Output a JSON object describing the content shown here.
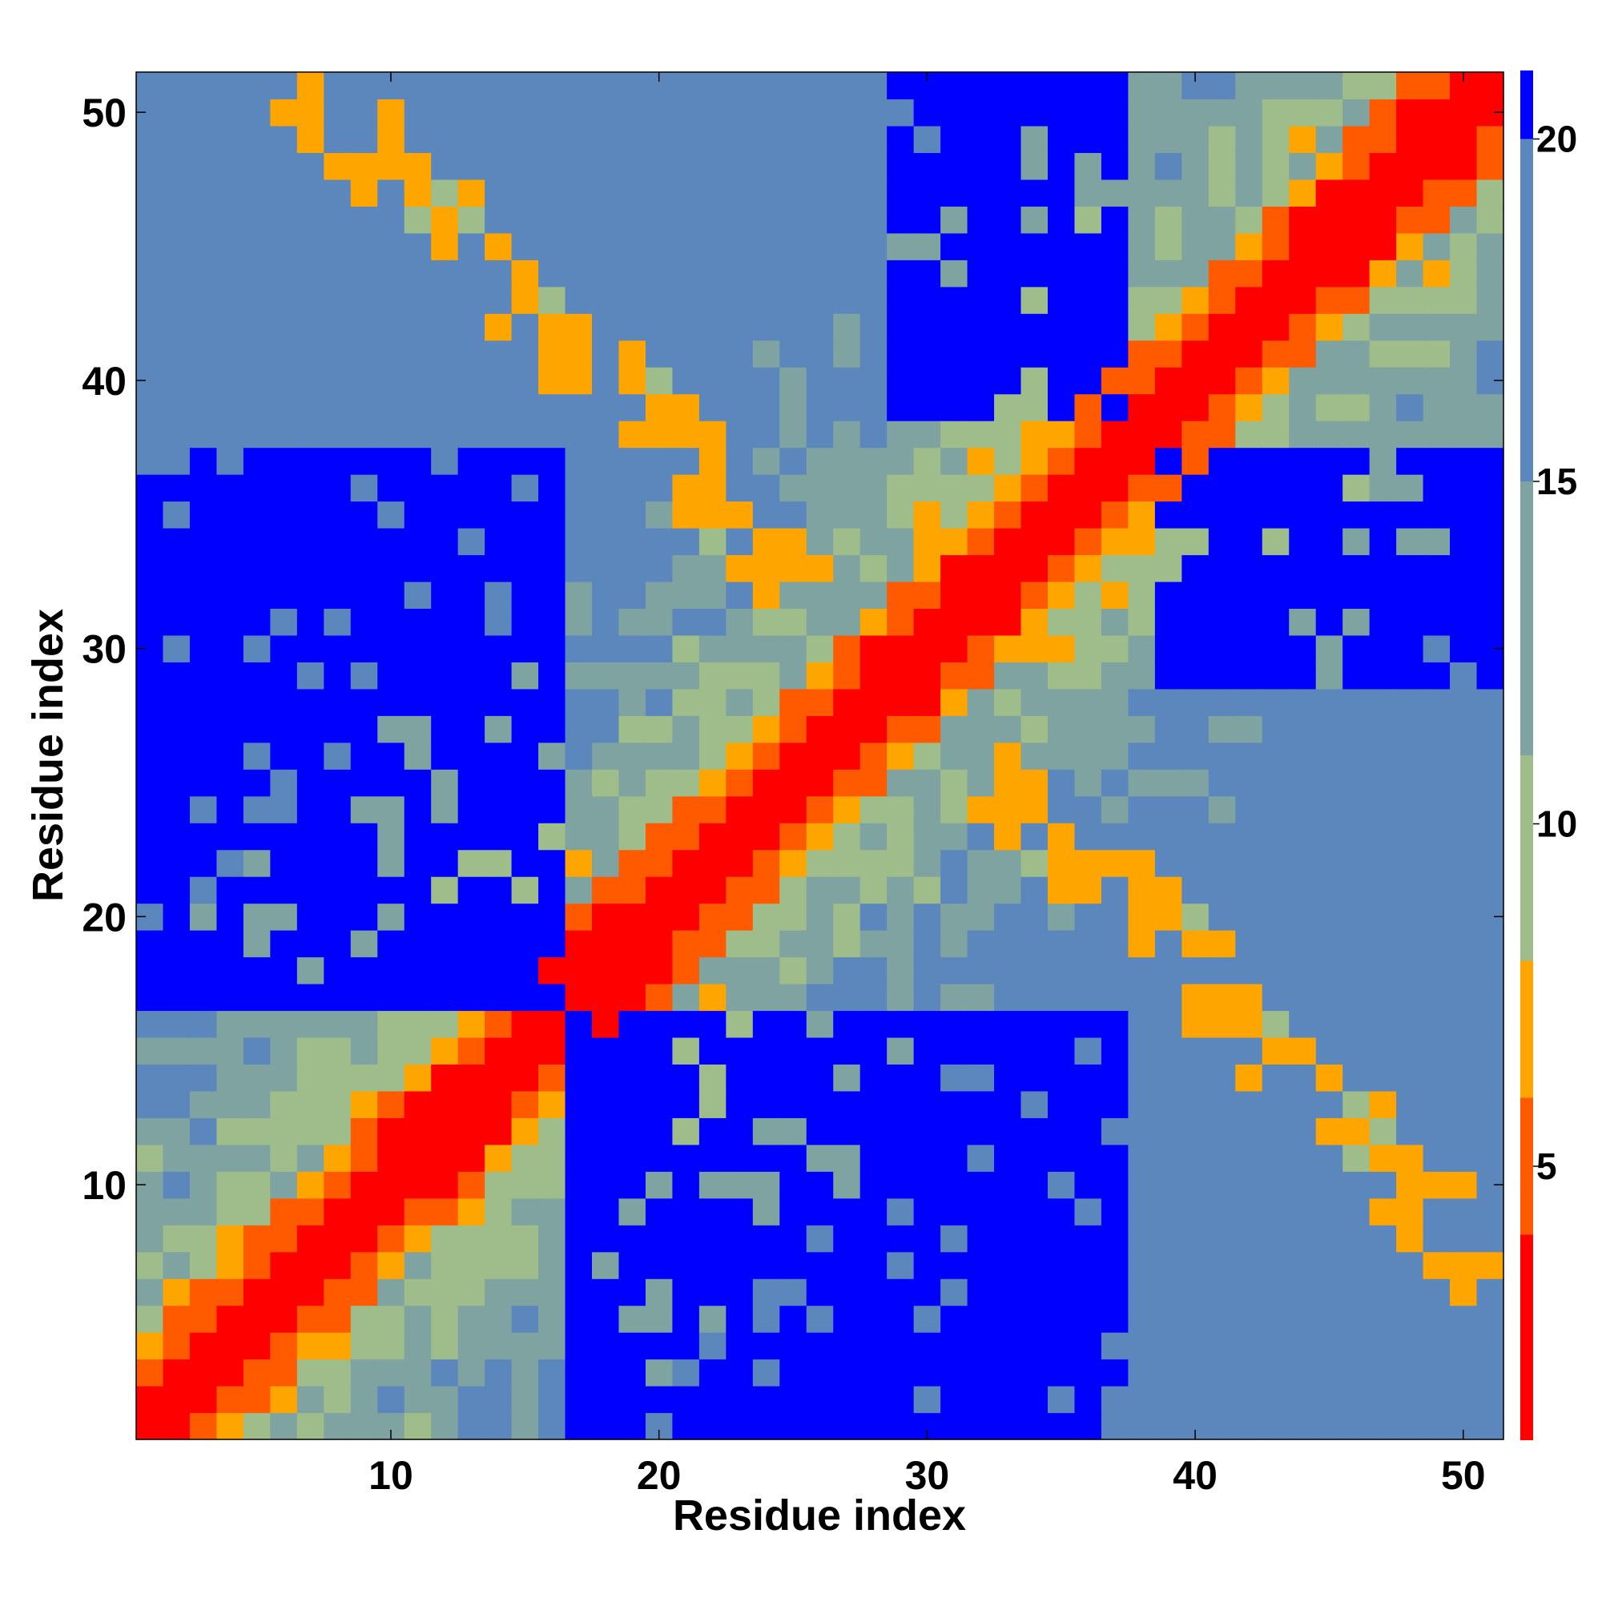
{
  "chart_data": {
    "type": "heatmap",
    "title": "",
    "xlabel": "Residue index",
    "ylabel": "Residue index",
    "n": 51,
    "xlim": [
      0.5,
      51.5
    ],
    "ylim": [
      0.5,
      51.5
    ],
    "xticks": [
      10,
      20,
      30,
      40,
      50
    ],
    "yticks": [
      10,
      20,
      30,
      40,
      50
    ],
    "colorbar": {
      "range": [
        1,
        21
      ],
      "ticks": [
        5,
        10,
        15,
        20
      ],
      "colors": [
        "#ff0000",
        "#ff5a00",
        "#ffa500",
        "#9ebd8a",
        "#7fa3a0",
        "#5b87bd",
        "#0000ff"
      ],
      "bounds": [
        1,
        4,
        6,
        8,
        11,
        15,
        20,
        21.5
      ]
    },
    "layout": {
      "cutoff": 20,
      "blocks": [
        {
          "i": [
            1,
            16
          ],
          "j": [
            17,
            37
          ]
        },
        {
          "i": [
            17,
            37
          ],
          "j": [
            1,
            16
          ]
        },
        {
          "i": [
            29,
            37
          ],
          "j": [
            39,
            51
          ]
        },
        {
          "i": [
            39,
            51
          ],
          "j": [
            29,
            37
          ]
        }
      ]
    }
  }
}
